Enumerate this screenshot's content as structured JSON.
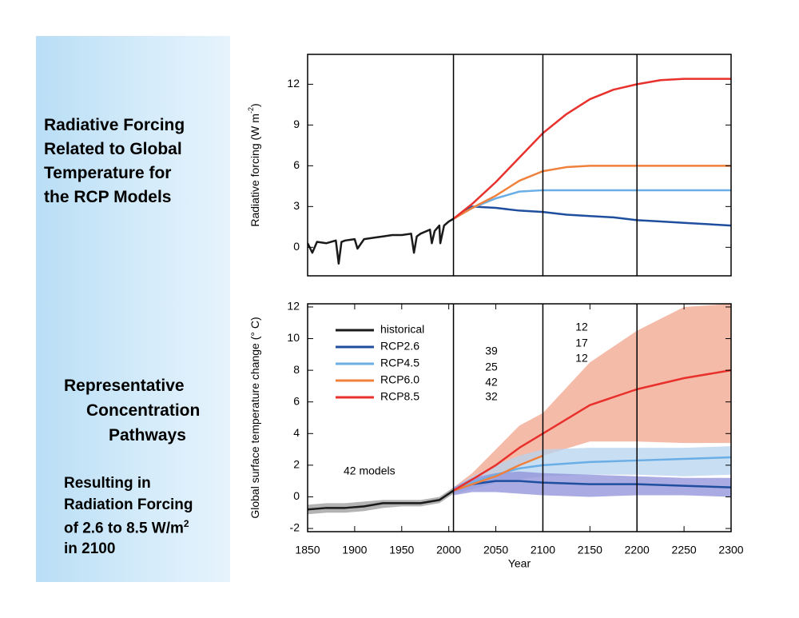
{
  "slide": {
    "title_lines": [
      "Radiative Forcing",
      "Related to Global",
      "Temperature for",
      "the RCP Models"
    ],
    "subtitle_lines": [
      "Representative",
      "Concentration",
      "Pathways"
    ],
    "note_lines": [
      "Resulting in",
      "Radiation Forcing",
      "of 2.6 to 8.5 W/m",
      "in 2100"
    ],
    "note_superscript": "2"
  },
  "chart_data": [
    {
      "type": "line",
      "y_label": "Radiative  forcing (W m",
      "y_label_superscript": "-2",
      "y_label_end": ")",
      "xlim": [
        1850,
        2300
      ],
      "ylim": [
        -2.1,
        14.2
      ],
      "yticks": [
        0,
        3,
        6,
        9,
        12
      ],
      "vlines": [
        2005,
        2100,
        2200
      ],
      "series": [
        {
          "color": "#1a1a1a",
          "x": [
            1850,
            1855,
            1860,
            1870,
            1880,
            1883,
            1886,
            1890,
            1900,
            1903,
            1910,
            1920,
            1930,
            1940,
            1950,
            1960,
            1963,
            1966,
            1970,
            1980,
            1982,
            1985,
            1990,
            1991,
            1995,
            2000,
            2005
          ],
          "values": [
            0.3,
            -0.4,
            0.4,
            0.3,
            0.5,
            -1.2,
            0.4,
            0.5,
            0.6,
            -0.1,
            0.6,
            0.7,
            0.8,
            0.9,
            0.9,
            1.0,
            -0.4,
            0.8,
            1.0,
            1.3,
            0.3,
            1.2,
            1.6,
            0.3,
            1.6,
            1.9,
            2.1
          ]
        },
        {
          "color": "#1f4e9f",
          "x": [
            2005,
            2025,
            2050,
            2075,
            2100,
            2125,
            2150,
            2175,
            2200,
            2225,
            2250,
            2275,
            2300
          ],
          "values": [
            2.1,
            3.0,
            2.9,
            2.7,
            2.6,
            2.4,
            2.3,
            2.2,
            2.0,
            1.9,
            1.8,
            1.7,
            1.6
          ]
        },
        {
          "color": "#6aaee6",
          "x": [
            2005,
            2025,
            2050,
            2075,
            2100,
            2125,
            2150,
            2175,
            2200,
            2225,
            2250,
            2275,
            2300
          ],
          "values": [
            2.1,
            2.9,
            3.6,
            4.1,
            4.2,
            4.2,
            4.2,
            4.2,
            4.2,
            4.2,
            4.2,
            4.2,
            4.2
          ]
        },
        {
          "color": "#f0813c",
          "x": [
            2005,
            2025,
            2050,
            2075,
            2100,
            2125,
            2150,
            2175,
            2200,
            2225,
            2250,
            2275,
            2300
          ],
          "values": [
            2.1,
            2.9,
            3.8,
            4.9,
            5.6,
            5.9,
            6.0,
            6.0,
            6.0,
            6.0,
            6.0,
            6.0,
            6.0
          ]
        },
        {
          "color": "#e8312c",
          "x": [
            2005,
            2025,
            2050,
            2075,
            2100,
            2125,
            2150,
            2175,
            2200,
            2225,
            2250,
            2275,
            2300
          ],
          "values": [
            2.1,
            3.2,
            4.8,
            6.6,
            8.4,
            9.8,
            10.9,
            11.6,
            12.0,
            12.3,
            12.4,
            12.4,
            12.4
          ]
        }
      ]
    },
    {
      "type": "line",
      "x_label": "Year",
      "y_label": "Global surface temperature change (° C)",
      "xlim": [
        1850,
        2300
      ],
      "ylim": [
        -2.2,
        12.2
      ],
      "xticks": [
        1850,
        1900,
        1950,
        2000,
        2050,
        2100,
        2150,
        2200,
        2250,
        2300
      ],
      "yticks": [
        -2,
        0,
        2,
        4,
        6,
        8,
        10,
        12
      ],
      "vlines": [
        2005,
        2100,
        2200
      ],
      "legend": "upper left",
      "note": "42 models",
      "annotations": [
        {
          "text": "39",
          "color": "#e8312c"
        },
        {
          "text": "25",
          "color": "#f0813c"
        },
        {
          "text": "42",
          "color": "#6aaee6"
        },
        {
          "text": "32",
          "color": "#1f4e9f"
        },
        {
          "text": "12",
          "color": "#e8312c"
        },
        {
          "text": "17",
          "color": "#6aaee6"
        },
        {
          "text": "12",
          "color": "#1f4e9f"
        }
      ],
      "series": [
        {
          "name": "historical",
          "color": "#1a1a1a",
          "band_color": "#9a9a9a",
          "x": [
            1850,
            1870,
            1890,
            1910,
            1930,
            1950,
            1970,
            1990,
            2005
          ],
          "values": [
            -0.8,
            -0.7,
            -0.7,
            -0.6,
            -0.4,
            -0.4,
            -0.4,
            -0.2,
            0.4
          ],
          "lower": [
            -1.1,
            -1.0,
            -1.0,
            -0.9,
            -0.7,
            -0.6,
            -0.6,
            -0.4,
            0.2
          ],
          "upper": [
            -0.5,
            -0.4,
            -0.4,
            -0.3,
            -0.2,
            -0.2,
            -0.2,
            0.0,
            0.6
          ]
        },
        {
          "name": "RCP2.6",
          "color": "#1f4e9f",
          "band_color": "#8e8fd8",
          "x": [
            2005,
            2025,
            2050,
            2075,
            2100,
            2150,
            2200,
            2250,
            2300
          ],
          "values": [
            0.4,
            0.8,
            1.0,
            1.0,
            0.9,
            0.8,
            0.8,
            0.7,
            0.6
          ],
          "lower": [
            0.1,
            0.3,
            0.3,
            0.2,
            0.1,
            0.0,
            0.1,
            0.1,
            0.0
          ],
          "upper": [
            0.6,
            1.2,
            1.5,
            1.6,
            1.5,
            1.4,
            1.3,
            1.2,
            1.2
          ]
        },
        {
          "name": "RCP4.5",
          "color": "#6aaee6",
          "band_color": "#b5d3ef",
          "x": [
            2005,
            2025,
            2050,
            2075,
            2100,
            2150,
            2200,
            2250,
            2300
          ],
          "values": [
            0.4,
            0.9,
            1.4,
            1.8,
            2.0,
            2.2,
            2.3,
            2.4,
            2.5
          ],
          "lower": [
            0.2,
            0.5,
            0.9,
            1.1,
            1.3,
            1.4,
            1.4,
            1.3,
            1.4
          ],
          "upper": [
            0.6,
            1.3,
            2.0,
            2.6,
            3.0,
            3.1,
            3.1,
            3.1,
            3.2
          ]
        },
        {
          "name": "RCP6.0",
          "color": "#f0813c",
          "x": [
            2005,
            2025,
            2050,
            2075,
            2100
          ],
          "values": [
            0.4,
            0.8,
            1.3,
            2.0,
            2.6
          ]
        },
        {
          "name": "RCP8.5",
          "color": "#e8312c",
          "band_color": "#f2a48c",
          "x": [
            2005,
            2025,
            2050,
            2075,
            2100,
            2150,
            2200,
            2250,
            2300
          ],
          "values": [
            0.4,
            1.1,
            2.0,
            3.1,
            4.0,
            5.8,
            6.8,
            7.5,
            8.0
          ],
          "lower": [
            0.3,
            0.8,
            1.2,
            2.0,
            2.6,
            3.5,
            3.5,
            3.4,
            3.4
          ],
          "upper": [
            0.6,
            1.5,
            3.0,
            4.5,
            5.3,
            8.5,
            10.5,
            12.0,
            12.2
          ]
        }
      ]
    }
  ]
}
